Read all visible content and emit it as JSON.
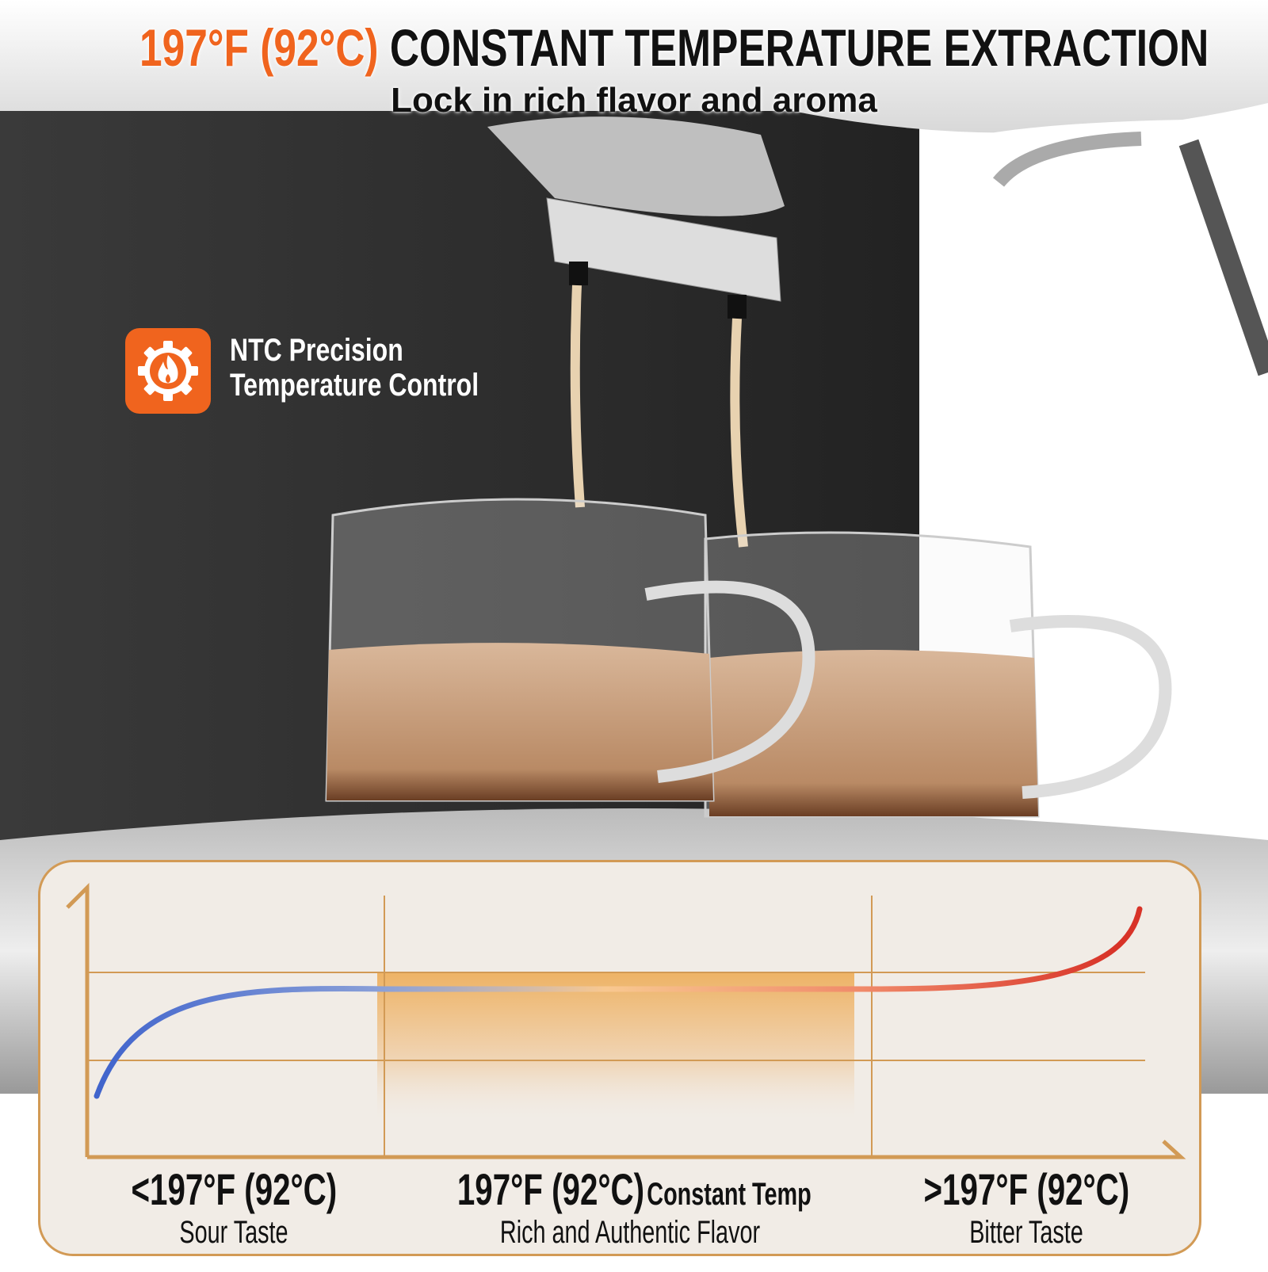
{
  "header": {
    "title_highlight": "197°F (92°C)",
    "title_rest": "CONSTANT TEMPERATURE EXTRACTION",
    "subtitle": "Lock in rich flavor and aroma"
  },
  "feature": {
    "icon": "gear-flame-icon",
    "line1_bold": "NTC",
    "line1_rest": "Precision",
    "line2": "Temperature Control"
  },
  "diagram": {
    "zones": [
      {
        "temp": "<197°F (92°C)",
        "suffix": "",
        "desc": "Sour Taste",
        "color": "#4a6fd0"
      },
      {
        "temp": "197°F (92°C)",
        "suffix": "Constant Temp",
        "desc": "Rich and Authentic Flavor",
        "color": "#f0b060"
      },
      {
        "temp": ">197°F (92°C)",
        "suffix": "",
        "desc": "Bitter Taste",
        "color": "#d83a2a"
      }
    ]
  },
  "colors": {
    "accent": "#f0641e",
    "frame": "#d29a55",
    "panel": "#f1ece6"
  }
}
